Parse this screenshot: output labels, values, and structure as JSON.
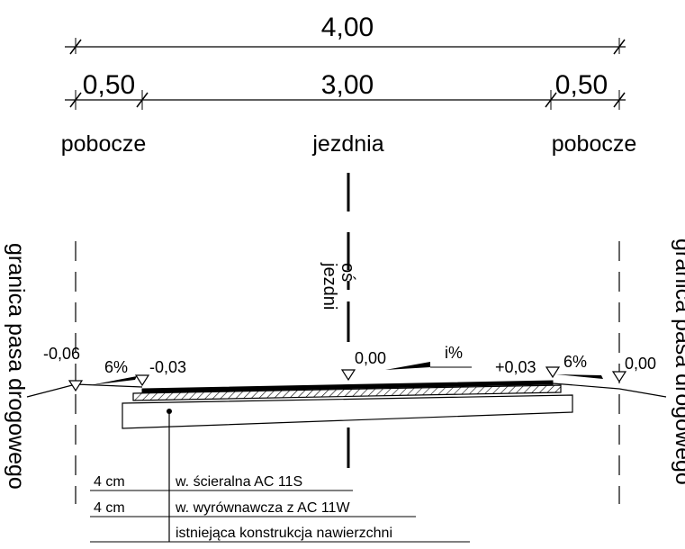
{
  "dimensions": {
    "total": "4,00",
    "left_shoulder": "0,50",
    "carriageway": "3,00",
    "right_shoulder": "0,50"
  },
  "zones": {
    "left": "pobocze",
    "center": "jezdnia",
    "right": "pobocze"
  },
  "axis_label": [
    "oś",
    "jezdni"
  ],
  "boundary_label": "granica pasa drogowego",
  "levels": {
    "left_edge": "-0,06",
    "left_shoulder_slope": "6%",
    "left_carriageway_edge": "-0,03",
    "axis": "0,00",
    "carriageway_slope": "i%",
    "right_carriageway_edge": "+0,03",
    "right_shoulder_slope": "6%",
    "right_edge": "0,00"
  },
  "layers": [
    {
      "thickness": "4 cm",
      "description": "w. ścieralna AC 11S"
    },
    {
      "thickness": "4 cm",
      "description": "w. wyrównawcza z AC 11W"
    },
    {
      "thickness": "",
      "description": "istniejąca konstrukcja nawierzchni"
    }
  ],
  "colors": {
    "ink": "#000000",
    "paper": "#ffffff"
  }
}
